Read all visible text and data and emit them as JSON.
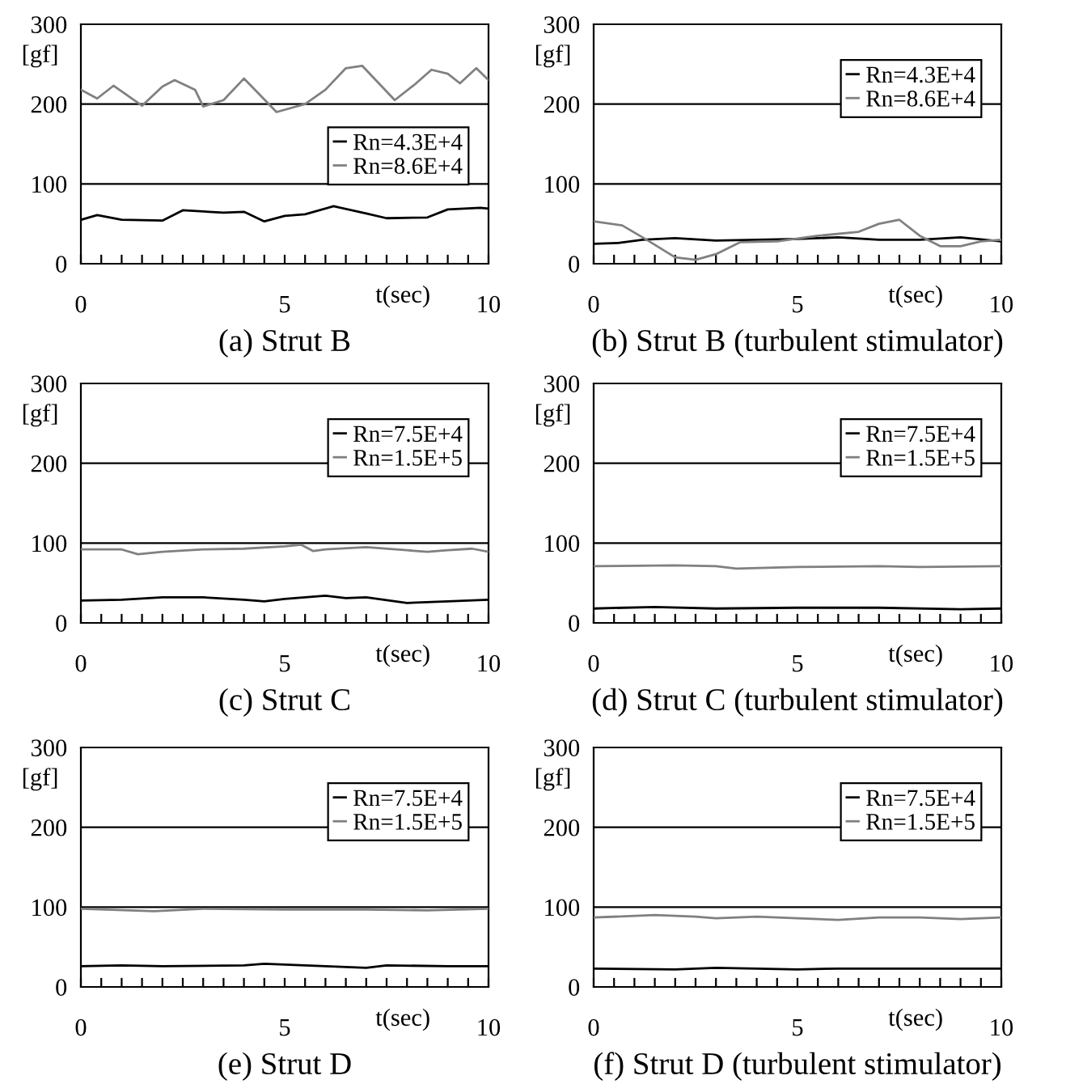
{
  "chart_data": [
    {
      "type": "line",
      "title": "(a) Strut B",
      "xlabel": "t(sec)",
      "ylabel": "[gf]",
      "xlim": [
        0,
        10
      ],
      "ylim": [
        0,
        300
      ],
      "grid": "y",
      "legend": "center right",
      "marker": "none",
      "line_style": "solid",
      "xticks": [
        0,
        {
          "value": 0.5,
          "label": null
        },
        {
          "value": 1,
          "label": null
        },
        {
          "value": 1.5,
          "label": null
        },
        {
          "value": 2,
          "label": null
        },
        {
          "value": 2.5,
          "label": null
        },
        {
          "value": 3,
          "label": null
        },
        {
          "value": 3.5,
          "label": null
        },
        {
          "value": 4,
          "label": null
        },
        {
          "value": 4.5,
          "label": null
        },
        5,
        {
          "value": 5.5,
          "label": null
        },
        {
          "value": 6,
          "label": null
        },
        {
          "value": 6.5,
          "label": null
        },
        {
          "value": 7,
          "label": null
        },
        {
          "value": 7.5,
          "label": null
        },
        {
          "value": 8,
          "label": null
        },
        {
          "value": 8.5,
          "label": null
        },
        {
          "value": 9,
          "label": null
        },
        {
          "value": 9.5,
          "label": null
        },
        10
      ],
      "yticks": [
        0,
        100,
        200,
        300
      ],
      "series": [
        {
          "name": "Rn=4.3E+4",
          "color": "#000000",
          "x": [
            0,
            0.4,
            1,
            2,
            2.5,
            3.5,
            4,
            4.5,
            5,
            5.5,
            6.2,
            7,
            7.5,
            8.5,
            9,
            9.8,
            10
          ],
          "values": [
            55,
            61,
            55,
            54,
            67,
            64,
            65,
            53,
            60,
            62,
            72,
            63,
            57,
            58,
            68,
            70,
            69
          ]
        },
        {
          "name": "Rn=8.6E+4",
          "color": "#808080",
          "x": [
            0,
            0.4,
            0.8,
            1.5,
            2,
            2.3,
            2.8,
            3,
            3.5,
            4,
            4.8,
            5.5,
            6,
            6.5,
            6.9,
            7.7,
            8.2,
            8.6,
            9,
            9.3,
            9.7,
            10
          ],
          "values": [
            218,
            207,
            223,
            198,
            222,
            230,
            218,
            197,
            205,
            232,
            190,
            200,
            218,
            245,
            248,
            205,
            225,
            243,
            238,
            226,
            245,
            230
          ]
        }
      ]
    },
    {
      "type": "line",
      "title": "(b) Strut B (turbulent stimulator)",
      "xlabel": "t(sec)",
      "ylabel": "[gf]",
      "xlim": [
        0,
        10
      ],
      "ylim": [
        0,
        300
      ],
      "grid": "y",
      "legend": "upper right",
      "marker": "none",
      "line_style": "solid",
      "xticks": [
        0,
        {
          "value": 0.5,
          "label": null
        },
        {
          "value": 1,
          "label": null
        },
        {
          "value": 1.5,
          "label": null
        },
        {
          "value": 2,
          "label": null
        },
        {
          "value": 2.5,
          "label": null
        },
        {
          "value": 3,
          "label": null
        },
        {
          "value": 3.5,
          "label": null
        },
        {
          "value": 4,
          "label": null
        },
        {
          "value": 4.5,
          "label": null
        },
        5,
        {
          "value": 5.5,
          "label": null
        },
        {
          "value": 6,
          "label": null
        },
        {
          "value": 6.5,
          "label": null
        },
        {
          "value": 7,
          "label": null
        },
        {
          "value": 7.5,
          "label": null
        },
        {
          "value": 8,
          "label": null
        },
        {
          "value": 8.5,
          "label": null
        },
        {
          "value": 9,
          "label": null
        },
        {
          "value": 9.5,
          "label": null
        },
        10
      ],
      "yticks": [
        0,
        100,
        200,
        300
      ],
      "series": [
        {
          "name": "Rn=4.3E+4",
          "color": "#000000",
          "x": [
            0,
            0.6,
            1.2,
            2,
            3,
            4,
            5,
            6,
            7,
            8,
            9,
            10
          ],
          "values": [
            25,
            26,
            30,
            32,
            29,
            30,
            31,
            33,
            30,
            30,
            33,
            28
          ]
        },
        {
          "name": "Rn=8.6E+4",
          "color": "#808080",
          "x": [
            0,
            0.7,
            1.3,
            2,
            2.5,
            3,
            3.6,
            4.5,
            5.5,
            6.5,
            7,
            7.5,
            8,
            8.5,
            9,
            9.5,
            10
          ],
          "values": [
            53,
            48,
            30,
            8,
            5,
            12,
            27,
            28,
            35,
            40,
            50,
            55,
            35,
            22,
            22,
            28,
            30
          ]
        }
      ]
    },
    {
      "type": "line",
      "title": "(c) Strut C",
      "xlabel": "t(sec)",
      "ylabel": "[gf]",
      "xlim": [
        0,
        10
      ],
      "ylim": [
        0,
        300
      ],
      "grid": "y",
      "legend": "upper right",
      "marker": "none",
      "line_style": "solid",
      "xticks": [
        0,
        {
          "value": 0.5,
          "label": null
        },
        {
          "value": 1,
          "label": null
        },
        {
          "value": 1.5,
          "label": null
        },
        {
          "value": 2,
          "label": null
        },
        {
          "value": 2.5,
          "label": null
        },
        {
          "value": 3,
          "label": null
        },
        {
          "value": 3.5,
          "label": null
        },
        {
          "value": 4,
          "label": null
        },
        {
          "value": 4.5,
          "label": null
        },
        5,
        {
          "value": 5.5,
          "label": null
        },
        {
          "value": 6,
          "label": null
        },
        {
          "value": 6.5,
          "label": null
        },
        {
          "value": 7,
          "label": null
        },
        {
          "value": 7.5,
          "label": null
        },
        {
          "value": 8,
          "label": null
        },
        {
          "value": 8.5,
          "label": null
        },
        {
          "value": 9,
          "label": null
        },
        {
          "value": 9.5,
          "label": null
        },
        10
      ],
      "yticks": [
        0,
        100,
        200,
        300
      ],
      "series": [
        {
          "name": "Rn=7.5E+4",
          "color": "#000000",
          "x": [
            0,
            1,
            2,
            3,
            4,
            4.5,
            5,
            6,
            6.5,
            7,
            8,
            9,
            10
          ],
          "values": [
            28,
            29,
            32,
            32,
            29,
            27,
            30,
            34,
            31,
            32,
            25,
            27,
            29
          ]
        },
        {
          "name": "Rn=1.5E+5",
          "color": "#808080",
          "x": [
            0,
            1,
            1.4,
            2,
            3,
            4,
            5,
            5.4,
            5.7,
            6,
            7,
            8,
            8.5,
            9,
            9.6,
            10
          ],
          "values": [
            92,
            92,
            86,
            89,
            92,
            93,
            96,
            98,
            90,
            92,
            95,
            91,
            89,
            91,
            93,
            89
          ]
        }
      ]
    },
    {
      "type": "line",
      "title": "(d) Strut C (turbulent stimulator)",
      "xlabel": "t(sec)",
      "ylabel": "[gf]",
      "xlim": [
        0,
        10
      ],
      "ylim": [
        0,
        300
      ],
      "grid": "y",
      "legend": "upper right",
      "marker": "none",
      "line_style": "solid",
      "xticks": [
        0,
        {
          "value": 0.5,
          "label": null
        },
        {
          "value": 1,
          "label": null
        },
        {
          "value": 1.5,
          "label": null
        },
        {
          "value": 2,
          "label": null
        },
        {
          "value": 2.5,
          "label": null
        },
        {
          "value": 3,
          "label": null
        },
        {
          "value": 3.5,
          "label": null
        },
        {
          "value": 4,
          "label": null
        },
        {
          "value": 4.5,
          "label": null
        },
        5,
        {
          "value": 5.5,
          "label": null
        },
        {
          "value": 6,
          "label": null
        },
        {
          "value": 6.5,
          "label": null
        },
        {
          "value": 7,
          "label": null
        },
        {
          "value": 7.5,
          "label": null
        },
        {
          "value": 8,
          "label": null
        },
        {
          "value": 8.5,
          "label": null
        },
        {
          "value": 9,
          "label": null
        },
        {
          "value": 9.5,
          "label": null
        },
        10
      ],
      "yticks": [
        0,
        100,
        200,
        300
      ],
      "series": [
        {
          "name": "Rn=7.5E+4",
          "color": "#000000",
          "x": [
            0,
            1.5,
            3,
            5,
            7,
            9,
            10
          ],
          "values": [
            18,
            20,
            18,
            19,
            19,
            17,
            18
          ]
        },
        {
          "name": "Rn=1.5E+5",
          "color": "#808080",
          "x": [
            0,
            2,
            3,
            3.5,
            5,
            7,
            8,
            10
          ],
          "values": [
            71,
            72,
            71,
            68,
            70,
            71,
            70,
            71
          ]
        }
      ]
    },
    {
      "type": "line",
      "title": "(e) Strut D",
      "xlabel": "t(sec)",
      "ylabel": "[gf]",
      "xlim": [
        0,
        10
      ],
      "ylim": [
        0,
        300
      ],
      "grid": "y",
      "legend": "upper right",
      "marker": "none",
      "line_style": "solid",
      "xticks": [
        0,
        {
          "value": 0.5,
          "label": null
        },
        {
          "value": 1,
          "label": null
        },
        {
          "value": 1.5,
          "label": null
        },
        {
          "value": 2,
          "label": null
        },
        {
          "value": 2.5,
          "label": null
        },
        {
          "value": 3,
          "label": null
        },
        {
          "value": 3.5,
          "label": null
        },
        {
          "value": 4,
          "label": null
        },
        {
          "value": 4.5,
          "label": null
        },
        5,
        {
          "value": 5.5,
          "label": null
        },
        {
          "value": 6,
          "label": null
        },
        {
          "value": 6.5,
          "label": null
        },
        {
          "value": 7,
          "label": null
        },
        {
          "value": 7.5,
          "label": null
        },
        {
          "value": 8,
          "label": null
        },
        {
          "value": 8.5,
          "label": null
        },
        {
          "value": 9,
          "label": null
        },
        {
          "value": 9.5,
          "label": null
        },
        10
      ],
      "yticks": [
        0,
        100,
        200,
        300
      ],
      "series": [
        {
          "name": "Rn=7.5E+4",
          "color": "#000000",
          "x": [
            0,
            1,
            2,
            4,
            4.5,
            6,
            7,
            7.5,
            9,
            10
          ],
          "values": [
            26,
            27,
            26,
            27,
            29,
            26,
            24,
            27,
            26,
            26
          ]
        },
        {
          "name": "Rn=1.5E+5",
          "color": "#808080",
          "x": [
            0,
            1.8,
            3,
            5,
            7,
            8.5,
            10
          ],
          "values": [
            98,
            95,
            98,
            97,
            97,
            96,
            98
          ]
        }
      ]
    },
    {
      "type": "line",
      "title": "(f) Strut D (turbulent stimulator)",
      "xlabel": "t(sec)",
      "ylabel": "[gf]",
      "xlim": [
        0,
        10
      ],
      "ylim": [
        0,
        300
      ],
      "grid": "y",
      "legend": "upper right",
      "marker": "none",
      "line_style": "solid",
      "xticks": [
        0,
        {
          "value": 0.5,
          "label": null
        },
        {
          "value": 1,
          "label": null
        },
        {
          "value": 1.5,
          "label": null
        },
        {
          "value": 2,
          "label": null
        },
        {
          "value": 2.5,
          "label": null
        },
        {
          "value": 3,
          "label": null
        },
        {
          "value": 3.5,
          "label": null
        },
        {
          "value": 4,
          "label": null
        },
        {
          "value": 4.5,
          "label": null
        },
        5,
        {
          "value": 5.5,
          "label": null
        },
        {
          "value": 6,
          "label": null
        },
        {
          "value": 6.5,
          "label": null
        },
        {
          "value": 7,
          "label": null
        },
        {
          "value": 7.5,
          "label": null
        },
        {
          "value": 8,
          "label": null
        },
        {
          "value": 8.5,
          "label": null
        },
        {
          "value": 9,
          "label": null
        },
        {
          "value": 9.5,
          "label": null
        },
        10
      ],
      "yticks": [
        0,
        100,
        200,
        300
      ],
      "series": [
        {
          "name": "Rn=7.5E+4",
          "color": "#000000",
          "x": [
            0,
            2,
            3,
            5,
            6,
            8,
            10
          ],
          "values": [
            23,
            22,
            24,
            22,
            23,
            23,
            23
          ]
        },
        {
          "name": "Rn=1.5E+5",
          "color": "#808080",
          "x": [
            0,
            1.5,
            2.5,
            3,
            4,
            5,
            6,
            7,
            8,
            9,
            10
          ],
          "values": [
            87,
            90,
            88,
            86,
            88,
            86,
            84,
            87,
            87,
            85,
            87
          ]
        }
      ]
    }
  ]
}
